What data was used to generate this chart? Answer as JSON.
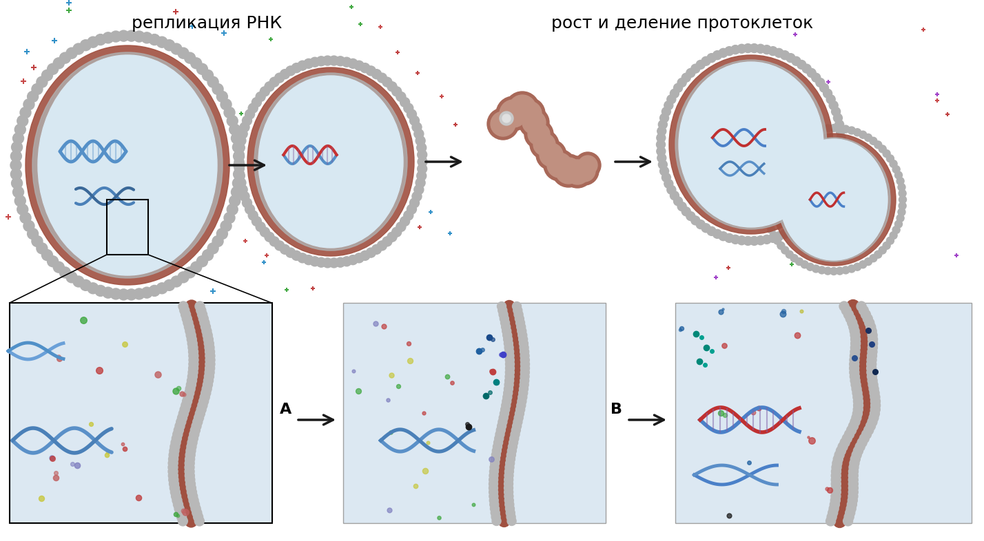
{
  "title_left": "репликация РНК",
  "title_right": "рост и деление протоклеток",
  "label_A": "A",
  "label_B": "B",
  "bg_color": "#ffffff",
  "fig_width": 14.28,
  "fig_height": 7.86,
  "dpi": 100,
  "membrane_outer_color": "#b5685a",
  "membrane_inner_color": "#c8c8c8",
  "interior_color": "#dce8f0",
  "rna_blue": "#4a90c8",
  "rna_red": "#c83232",
  "rna_dark": "#5a7a9a",
  "lipid_gray": "#b0b0b0",
  "arrow_color": "#1a1a1a",
  "title_fontsize": 18,
  "label_fontsize": 16
}
